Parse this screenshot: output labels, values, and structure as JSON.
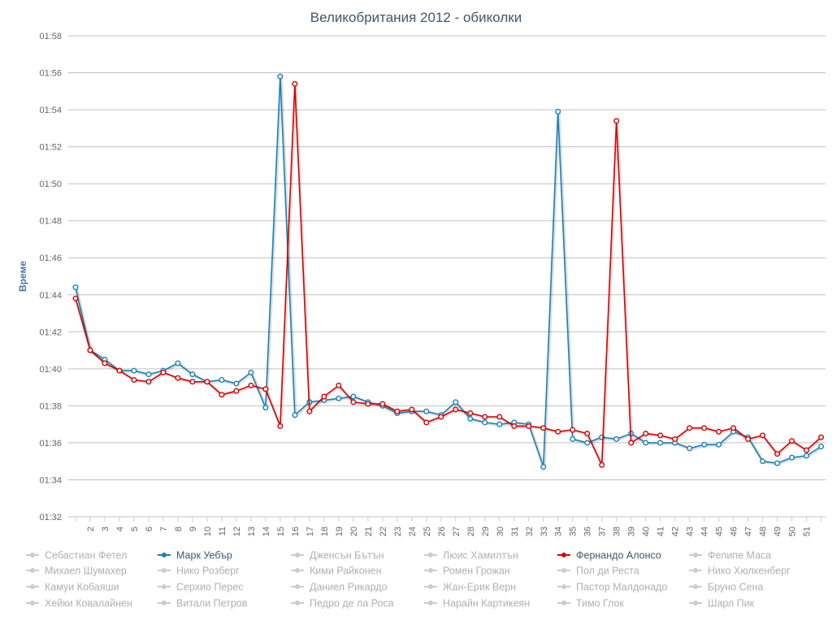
{
  "chart_data": {
    "type": "line",
    "title": "Великобритания 2012 - обиколки",
    "ylabel": "Време",
    "xlabel": "",
    "y_ticks": [
      "01:32",
      "01:34",
      "01:36",
      "01:38",
      "01:40",
      "01:42",
      "01:44",
      "01:46",
      "01:48",
      "01:50",
      "01:52",
      "01:54",
      "01:56",
      "01:58"
    ],
    "ylim_seconds": [
      92,
      118
    ],
    "x_tick_labels": [
      "2",
      "3",
      "4",
      "5",
      "6",
      "7",
      "8",
      "9",
      "10",
      "11",
      "12",
      "13",
      "14",
      "15",
      "16",
      "17",
      "18",
      "19",
      "20",
      "21",
      "22",
      "23",
      "24",
      "25",
      "26",
      "27",
      "28",
      "29",
      "30",
      "31",
      "32",
      "33",
      "34",
      "35",
      "36",
      "37",
      "38",
      "39",
      "40",
      "41",
      "42",
      "43",
      "44",
      "45",
      "46",
      "47",
      "48",
      "49",
      "50",
      "51"
    ],
    "x_laps": [
      1,
      2,
      3,
      4,
      5,
      6,
      7,
      8,
      9,
      10,
      11,
      12,
      13,
      14,
      15,
      16,
      17,
      18,
      19,
      20,
      21,
      22,
      23,
      24,
      25,
      26,
      27,
      28,
      29,
      30,
      31,
      32,
      33,
      34,
      35,
      36,
      37,
      38,
      39,
      40,
      41,
      42,
      43,
      44,
      45,
      46,
      47,
      48,
      49,
      50,
      51,
      52
    ],
    "grid": true,
    "legend_position": "bottom",
    "series": [
      {
        "name": "Марк Уебър",
        "color": "#1982b8",
        "values": [
          104.4,
          101.0,
          100.5,
          99.9,
          99.9,
          99.7,
          99.9,
          100.3,
          99.7,
          99.3,
          99.4,
          99.2,
          99.8,
          97.9,
          115.8,
          97.5,
          98.2,
          98.3,
          98.4,
          98.5,
          98.2,
          98.0,
          97.6,
          97.7,
          97.7,
          97.5,
          98.2,
          97.3,
          97.1,
          97.0,
          97.1,
          97.0,
          94.7,
          113.9,
          96.2,
          96.0,
          96.3,
          96.2,
          96.5,
          96.0,
          96.0,
          96.0,
          95.7,
          95.9,
          95.9,
          96.6,
          96.3,
          95.0,
          94.9,
          95.2,
          95.3,
          95.8
        ]
      },
      {
        "name": "Фернандо Алонсо",
        "color": "#d90000",
        "values": [
          103.8,
          101.0,
          100.3,
          99.9,
          99.4,
          99.3,
          99.8,
          99.5,
          99.3,
          99.3,
          98.6,
          98.8,
          99.1,
          98.9,
          96.9,
          115.4,
          97.7,
          98.5,
          99.1,
          98.2,
          98.1,
          98.1,
          97.7,
          97.8,
          97.1,
          97.4,
          97.8,
          97.6,
          97.4,
          97.4,
          96.9,
          96.9,
          96.8,
          96.6,
          96.7,
          96.5,
          94.8,
          113.4,
          96.0,
          96.5,
          96.4,
          96.2,
          96.8,
          96.8,
          96.6,
          96.8,
          96.2,
          96.4,
          95.4,
          96.1,
          95.6,
          96.3
        ]
      }
    ]
  },
  "legend": {
    "items": [
      {
        "label": "Себастиан Фетел",
        "active": false
      },
      {
        "label": "Марк Уебър",
        "active": true,
        "color": "#1982b8"
      },
      {
        "label": "Дженсън Бътън",
        "active": false
      },
      {
        "label": "Люис Хамилтън",
        "active": false
      },
      {
        "label": "Фернандо Алонсо",
        "active": true,
        "color": "#d90000"
      },
      {
        "label": "Фелипе Маса",
        "active": false
      },
      {
        "label": "Михаел Шумахер",
        "active": false
      },
      {
        "label": "Нико Розберг",
        "active": false
      },
      {
        "label": "Кими Райконен",
        "active": false
      },
      {
        "label": "Ромен Грожан",
        "active": false
      },
      {
        "label": "Пол ди Реста",
        "active": false
      },
      {
        "label": "Нико Хюлкенберг",
        "active": false
      },
      {
        "label": "Камуи Кобаяши",
        "active": false
      },
      {
        "label": "Серхио Перес",
        "active": false
      },
      {
        "label": "Даниел Рикардо",
        "active": false
      },
      {
        "label": "Жан-Ерик Верн",
        "active": false
      },
      {
        "label": "Пастор Малдонадо",
        "active": false
      },
      {
        "label": "Бруно Сена",
        "active": false
      },
      {
        "label": "Хейки Ковалайнен",
        "active": false
      },
      {
        "label": "Витали Петров",
        "active": false
      },
      {
        "label": "Педро де ла Роса",
        "active": false
      },
      {
        "label": "Нарайн Картикеян",
        "active": false
      },
      {
        "label": "Тимо Глок",
        "active": false
      },
      {
        "label": "Шарл Пик",
        "active": false
      }
    ],
    "inactive_color": "#cccccc",
    "inactive_text_color": "#b0b0b0",
    "active_text_color": "#3E576F"
  }
}
